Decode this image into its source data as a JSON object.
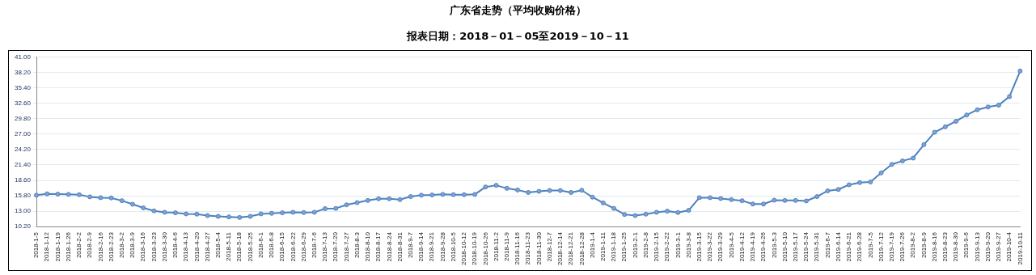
{
  "chart_data": {
    "type": "line",
    "title": "广东省走势（平均收购价格）",
    "subtitle": "报表日期：2018－01－05至2019－10－11",
    "categories": [
      "2018-1-5",
      "2018-1-12",
      "2018-1-19",
      "2018-1-26",
      "2018-2-2",
      "2018-2-9",
      "2018-2-16",
      "2018-2-23",
      "2018-3-2",
      "2018-3-9",
      "2018-3-16",
      "2018-3-23",
      "2018-3-30",
      "2018-4-6",
      "2018-4-13",
      "2018-4-20",
      "2018-4-27",
      "2018-5-4",
      "2018-5-11",
      "2018-5-18",
      "2018-5-25",
      "2018-6-1",
      "2018-6-8",
      "2018-6-15",
      "2018-6-22",
      "2018-6-29",
      "2018-7-6",
      "2018-7-13",
      "2018-7-20",
      "2018-7-27",
      "2018-8-3",
      "2018-8-10",
      "2018-8-17",
      "2018-8-24",
      "2018-8-31",
      "2018-9-7",
      "2018-9-14",
      "2018-9-21",
      "2018-9-28",
      "2018-10-5",
      "2018-10-12",
      "2018-10-19",
      "2018-10-26",
      "2018-11-2",
      "2018-11-9",
      "2018-11-16",
      "2018-11-23",
      "2018-11-30",
      "2018-12-7",
      "2018-12-14",
      "2018-12-21",
      "2018-12-28",
      "2019-1-4",
      "2019-1-11",
      "2019-1-18",
      "2019-1-25",
      "2019-2-1",
      "2019-2-8",
      "2019-2-15",
      "2019-2-22",
      "2019-3-1",
      "2019-3-8",
      "2019-3-15",
      "2019-3-22",
      "2019-3-29",
      "2019-4-5",
      "2019-4-12",
      "2019-4-19",
      "2019-4-26",
      "2019-5-3",
      "2019-5-10",
      "2019-5-17",
      "2019-5-24",
      "2019-5-31",
      "2019-6-7",
      "2019-6-14",
      "2019-6-21",
      "2019-6-28",
      "2019-7-5",
      "2019-7-12",
      "2019-7-19",
      "2019-7-26",
      "2019-8-2",
      "2019-8-9",
      "2019-8-16",
      "2019-8-23",
      "2019-8-30",
      "2019-9-6",
      "2019-9-13",
      "2019-9-20",
      "2019-9-27",
      "2019-10-4",
      "2019-10-11"
    ],
    "series": [
      {
        "color": "#4f81bd",
        "values": [
          15.9,
          16.15,
          16.1,
          16.05,
          16.0,
          15.6,
          15.45,
          15.4,
          14.9,
          14.25,
          13.6,
          13.05,
          12.8,
          12.7,
          12.5,
          12.45,
          12.2,
          12.05,
          11.95,
          11.85,
          12.05,
          12.5,
          12.6,
          12.7,
          12.8,
          12.75,
          12.8,
          13.45,
          13.5,
          14.15,
          14.55,
          14.95,
          15.25,
          15.25,
          15.1,
          15.65,
          15.9,
          15.95,
          16.05,
          16.0,
          16.0,
          16.05,
          17.4,
          17.7,
          17.15,
          16.85,
          16.4,
          16.6,
          16.75,
          16.75,
          16.4,
          16.8,
          15.55,
          14.5,
          13.5,
          12.4,
          12.2,
          12.45,
          12.8,
          13.0,
          12.75,
          13.15,
          15.45,
          15.45,
          15.3,
          15.1,
          14.9,
          14.3,
          14.3,
          15.0,
          14.95,
          14.95,
          14.85,
          15.65,
          16.7,
          16.95,
          17.8,
          18.2,
          18.3,
          19.95,
          21.5,
          22.15,
          22.65,
          25.1,
          27.35,
          28.35,
          29.35,
          30.5,
          31.45,
          31.95,
          32.3,
          33.85,
          38.5
        ]
      }
    ],
    "ylim": [
      10.2,
      41
    ],
    "yticks": [
      {
        "value": 10.2,
        "label": "10.20"
      },
      {
        "value": 13,
        "label": "13.00"
      },
      {
        "value": 15.8,
        "label": "15.80"
      },
      {
        "value": 18.6,
        "label": "18.60"
      },
      {
        "value": 21.4,
        "label": "21.40"
      },
      {
        "value": 24.2,
        "label": "24.20"
      },
      {
        "value": 27,
        "label": "27.00"
      },
      {
        "value": 29.8,
        "label": "29.80"
      },
      {
        "value": 32.6,
        "label": "32.60"
      },
      {
        "value": 35.4,
        "label": "35.40"
      },
      {
        "value": 38.2,
        "label": "38.20"
      },
      {
        "value": 41,
        "label": "41.00"
      }
    ],
    "grid": "y",
    "marker": "circle"
  }
}
